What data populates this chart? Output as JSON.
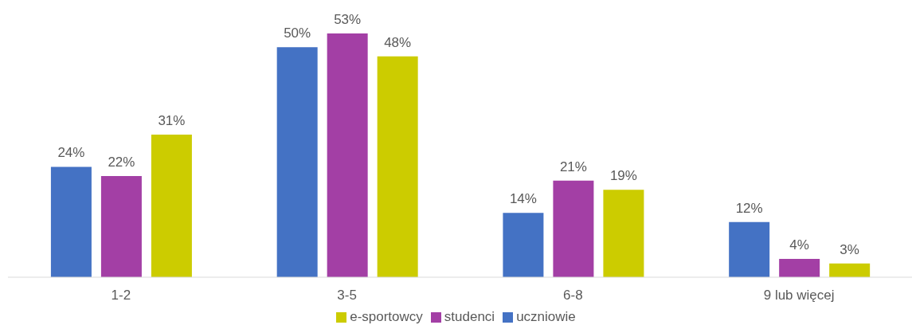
{
  "chart_data": {
    "type": "bar",
    "categories": [
      "1-2",
      "3-5",
      "6-8",
      "9 lub więcej"
    ],
    "series": [
      {
        "name": "uczniowie",
        "color": "#4472c4",
        "values": [
          24,
          50,
          14,
          12
        ],
        "value_labels": [
          "24%",
          "50%",
          "14%",
          "12%"
        ]
      },
      {
        "name": "studenci",
        "color": "#a33fa5",
        "values": [
          22,
          53,
          21,
          4
        ],
        "value_labels": [
          "22%",
          "53%",
          "21%",
          "4%"
        ]
      },
      {
        "name": "e-sportowcy",
        "color": "#cccc00",
        "values": [
          31,
          48,
          19,
          3
        ],
        "value_labels": [
          "31%",
          "48%",
          "19%",
          "3%"
        ]
      }
    ],
    "legend": "bottom",
    "grid": false
  }
}
